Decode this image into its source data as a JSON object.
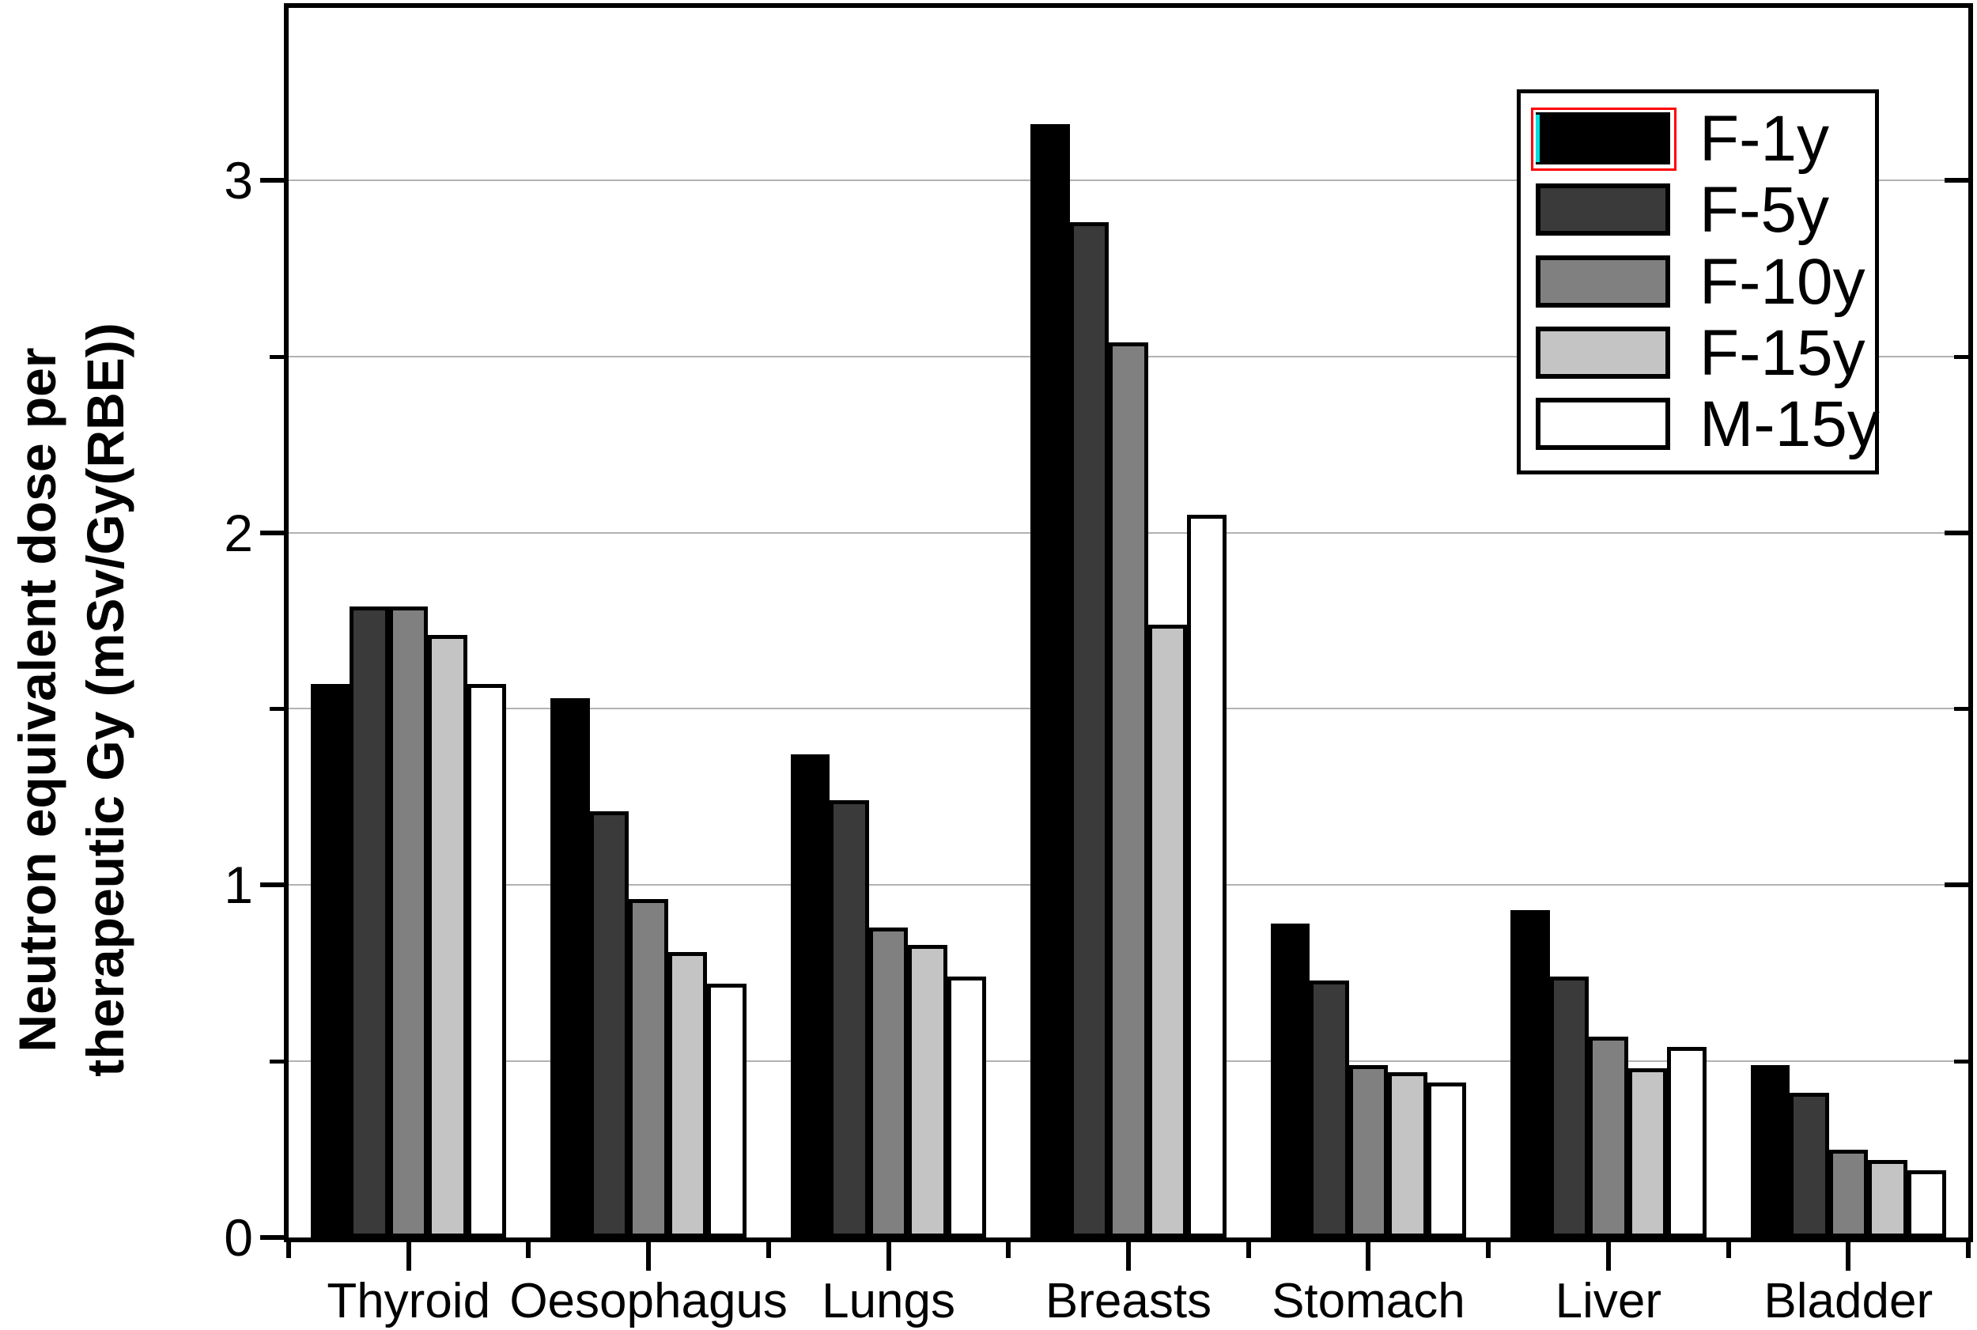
{
  "background": "#ffffff",
  "axis_color": "#000000",
  "gridline_color": "#b2b2b2",
  "chart_data": {
    "type": "bar",
    "title": "",
    "xlabel": "",
    "ylabel_lines": [
      "Neutron equivalent dose per",
      "therapeutic Gy (mSv/Gy(RBE))"
    ],
    "categories": [
      "Thyroid",
      "Oesophagus",
      "Lungs",
      "Breasts",
      "Stomach",
      "Liver",
      "Bladder"
    ],
    "series": [
      {
        "name": "F-1y",
        "color": "#000000",
        "values": [
          1.57,
          1.53,
          1.37,
          3.16,
          0.89,
          0.93,
          0.49
        ]
      },
      {
        "name": "F-5y",
        "color": "#3a3a3a",
        "values": [
          1.79,
          1.21,
          1.24,
          2.88,
          0.73,
          0.74,
          0.41
        ]
      },
      {
        "name": "F-10y",
        "color": "#808080",
        "values": [
          1.79,
          0.96,
          0.88,
          2.54,
          0.49,
          0.57,
          0.25
        ]
      },
      {
        "name": "F-15y",
        "color": "#c4c4c4",
        "values": [
          1.71,
          0.81,
          0.83,
          1.74,
          0.47,
          0.48,
          0.22
        ]
      },
      {
        "name": "M-15y",
        "color": "#ffffff",
        "values": [
          1.57,
          0.72,
          0.74,
          2.05,
          0.44,
          0.54,
          0.19
        ]
      }
    ],
    "ylim": [
      0,
      3.489
    ],
    "yticks_major": [
      0,
      1,
      2,
      3
    ],
    "yticks_minor": [
      0.5,
      1.5,
      2.5
    ],
    "grid_values": [
      0.5,
      1.0,
      1.5,
      2.0,
      2.5,
      3.0
    ],
    "grid": "on",
    "legend_position": "upper-right",
    "legend_selected_series": "F-1y",
    "legend_selection_border_color": "#ff0000",
    "legend_selection_accent_color": "#00dede",
    "bar_outline_color": "#000000"
  }
}
